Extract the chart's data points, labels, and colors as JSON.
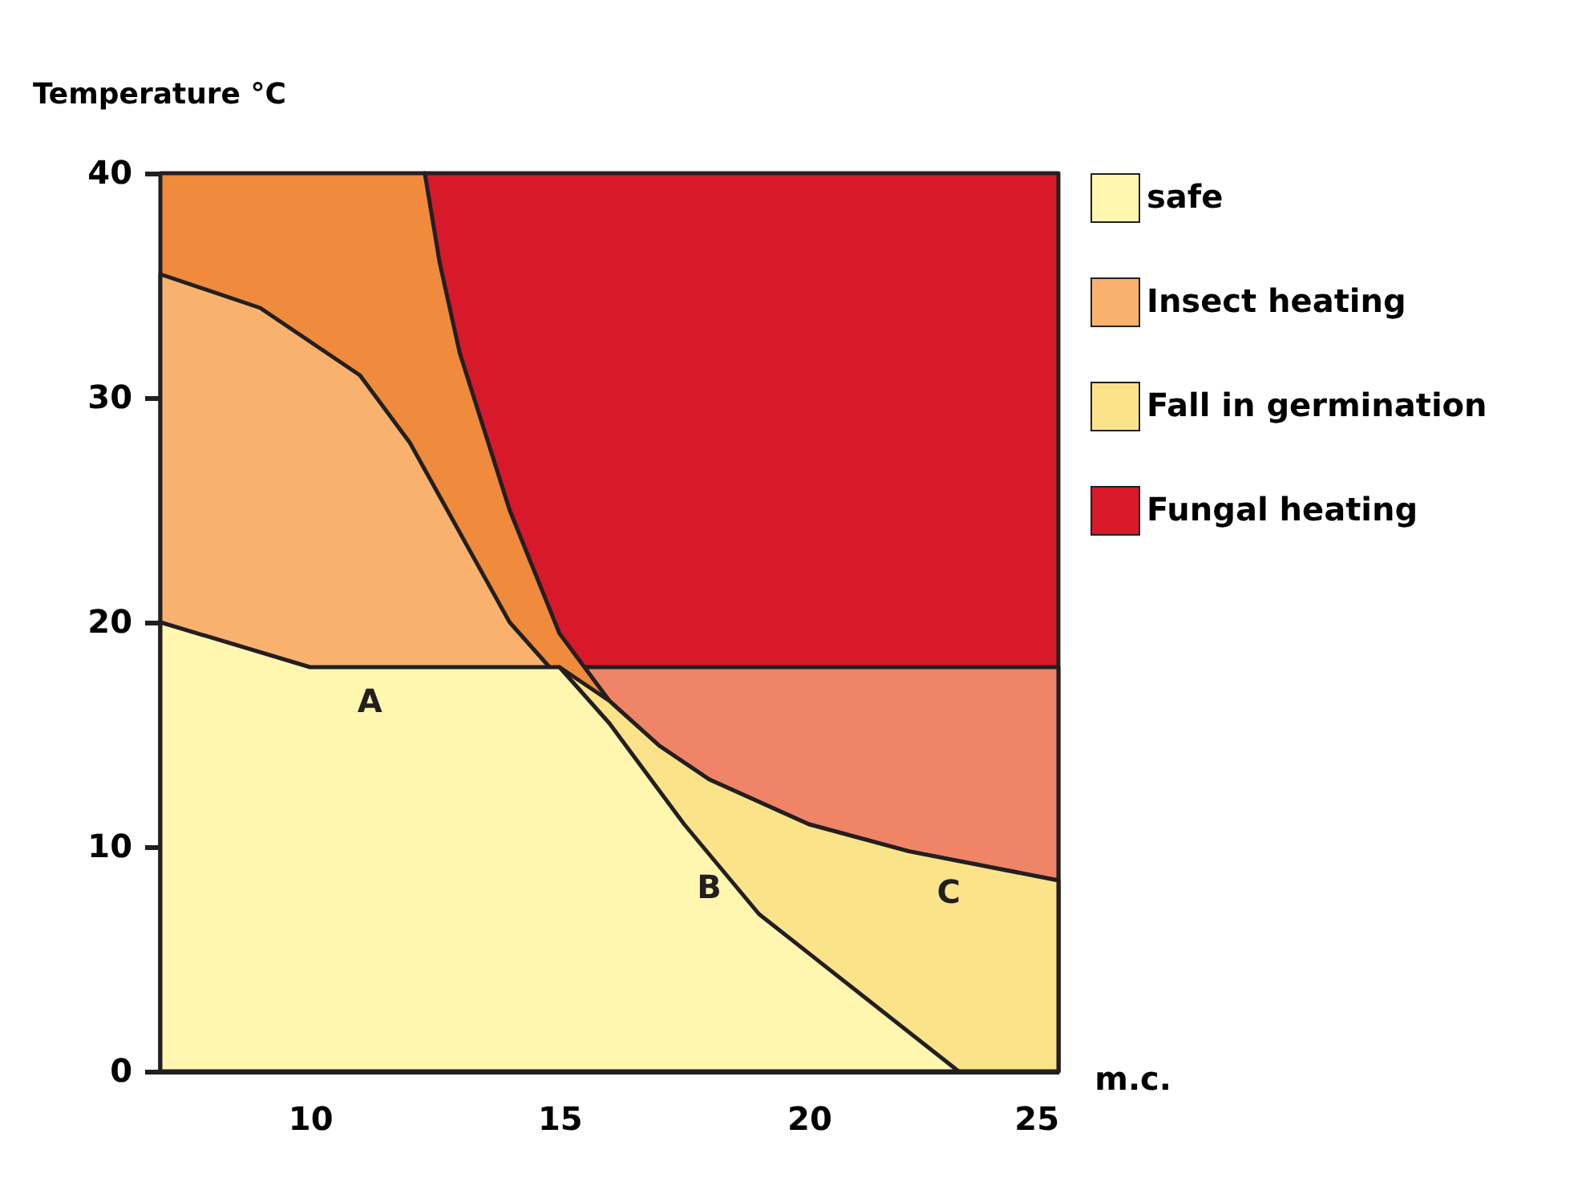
{
  "chart_data": {
    "type": "area",
    "xlabel": "m.c.",
    "ylabel": "Temperature °C",
    "xlim": [
      7,
      25
    ],
    "ylim": [
      0,
      40
    ],
    "xticks": [
      10,
      15,
      20,
      25
    ],
    "yticks": [
      0,
      10,
      20,
      30,
      40
    ],
    "legend": "right",
    "series": [
      {
        "name": "Fungal heating",
        "color": "#d7192a",
        "x": [
          12.3,
          25
        ],
        "values": [
          40,
          40
        ]
      },
      {
        "color": "#ef8466",
        "x": [
          15.5,
          25
        ],
        "values": [
          18,
          18
        ]
      },
      {
        "color": "#f08a3c",
        "x": [
          7,
          12.3,
          12.6,
          13,
          14,
          15,
          16,
          17,
          18,
          20,
          22,
          25
        ],
        "values": [
          40,
          40,
          36,
          32,
          25,
          19.5,
          16.5,
          14.5,
          13,
          11,
          9.8,
          8.5
        ]
      },
      {
        "name": "Fall in germination",
        "color": "#fbe38a",
        "x": [
          15,
          16,
          17,
          18,
          20,
          22,
          25
        ],
        "values": [
          18,
          16.5,
          14.5,
          13,
          11,
          9.8,
          8.5
        ]
      },
      {
        "name": "Insect heating",
        "color": "#f9b26e",
        "x": [
          7,
          9,
          11,
          12,
          13,
          14,
          14.8
        ],
        "values": [
          35.5,
          34,
          31,
          28,
          24,
          20,
          18
        ]
      },
      {
        "name": "safe",
        "color": "#fff6b0",
        "x": [
          7,
          10,
          15,
          16,
          17.5,
          19,
          21,
          23
        ],
        "values": [
          20,
          18,
          18,
          15.5,
          11,
          7,
          3.5,
          0
        ]
      }
    ],
    "annotations": [
      {
        "text": "A",
        "x": 11.2,
        "y": 18
      },
      {
        "text": "B",
        "x": 18,
        "y": 9.7
      },
      {
        "text": "C",
        "x": 22.8,
        "y": 9.5
      }
    ]
  }
}
